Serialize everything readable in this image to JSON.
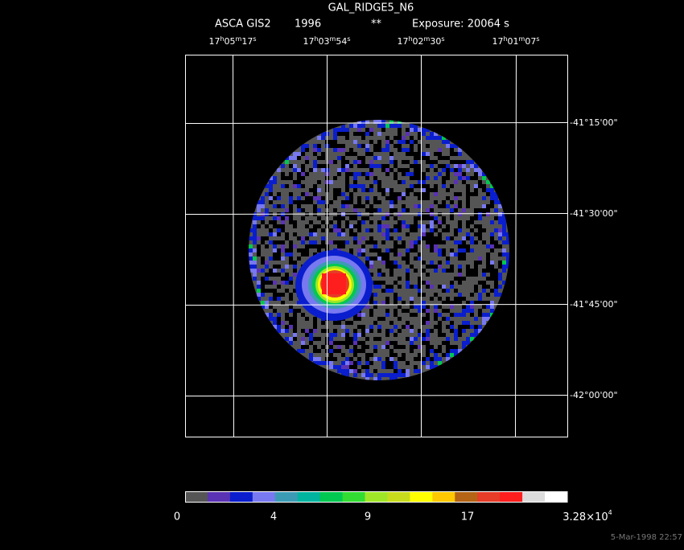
{
  "header": {
    "title": "GAL_RIDGE5_N6",
    "instrument": "ASCA GIS2",
    "year": "1996",
    "flag": "**",
    "exposure": "Exposure: 20064 s"
  },
  "ra_labels": [
    [
      "17",
      "h",
      "05",
      "m",
      "17",
      "s"
    ],
    [
      "17",
      "h",
      "03",
      "m",
      "54",
      "s"
    ],
    [
      "17",
      "h",
      "02",
      "m",
      "30",
      "s"
    ],
    [
      "17",
      "h",
      "01",
      "m",
      "07",
      "s"
    ]
  ],
  "dec_labels": [
    "-41°15'00\"",
    "-41°30'00\"",
    "-41°45'00\"",
    "-42°00'00\""
  ],
  "colorbar": {
    "colors": [
      "#555555",
      "#5a32b4",
      "#0a1ecd",
      "#7878f0",
      "#3c9bb4",
      "#00b4a0",
      "#00c850",
      "#32dc32",
      "#a0e628",
      "#c8dc1e",
      "#ffff00",
      "#ffc800",
      "#b46414",
      "#e63c28",
      "#ff1e1e",
      "#dcdcdc",
      "#ffffff"
    ],
    "labels": [
      "0",
      "4",
      "9",
      "17"
    ],
    "max_label": {
      "mantissa": "3.28×10",
      "exponent": "4"
    }
  },
  "timestamp": "5-Mar-1998 22:57"
}
